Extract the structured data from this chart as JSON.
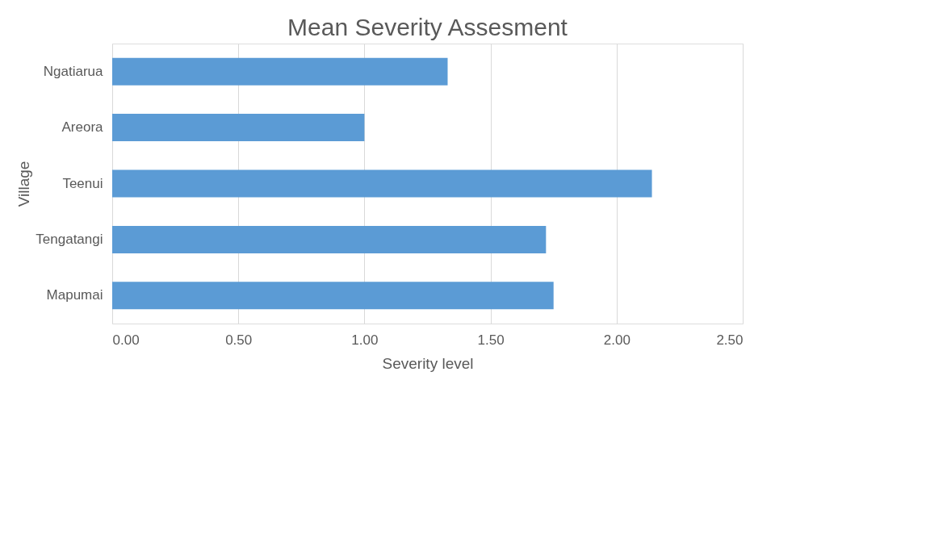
{
  "chart_data": {
    "type": "bar",
    "orientation": "horizontal",
    "title": "Mean Severity Assesment",
    "xlabel": "Severity level",
    "ylabel": "Village",
    "categories": [
      "Ngatiarua",
      "Areora",
      "Teenui",
      "Tengatangi",
      "Mapumai"
    ],
    "values": [
      1.33,
      1.0,
      2.14,
      1.72,
      1.75
    ],
    "color": "#5b9bd5",
    "xlim": [
      0,
      2.5
    ],
    "xticks": [
      {
        "value": 0,
        "label": "0.00"
      },
      {
        "value": 0.5,
        "label": "0.50"
      },
      {
        "value": 1,
        "label": "1.00"
      },
      {
        "value": 1.5,
        "label": "1.50"
      },
      {
        "value": 2,
        "label": "2.00"
      },
      {
        "value": 2.5,
        "label": "2.50"
      }
    ],
    "grid": "x"
  }
}
